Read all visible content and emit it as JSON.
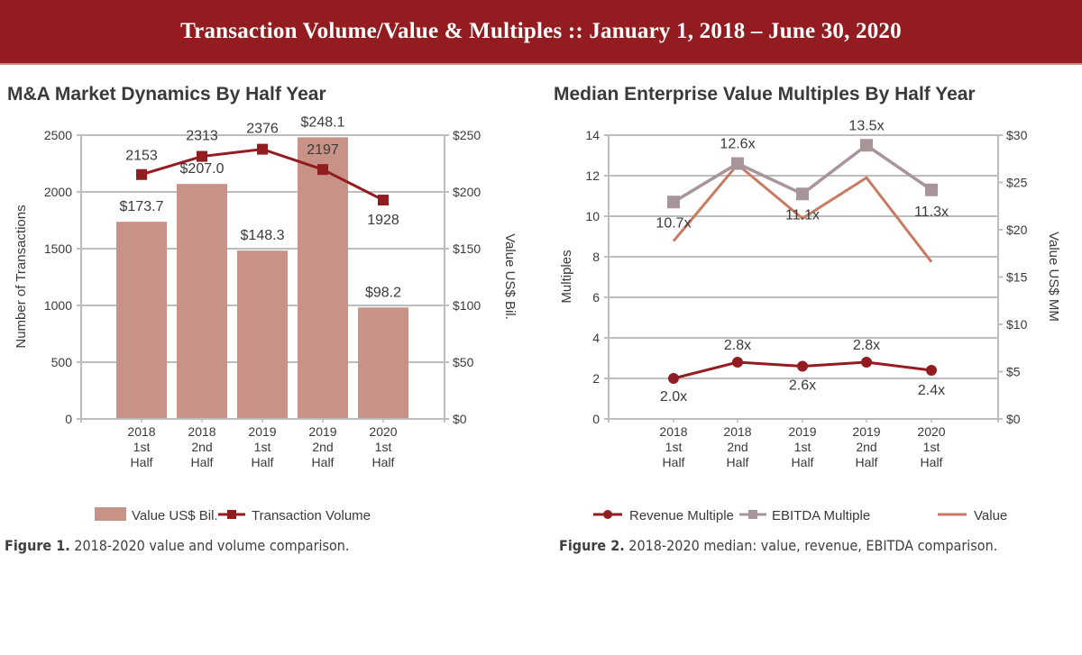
{
  "header": {
    "title": "Transaction Volume/Value & Multiples  ::  January 1, 2018 – June 30, 2020"
  },
  "colors": {
    "banner": "#931c20",
    "bar": "#c99287",
    "volume_line": "#931c20",
    "revenue_line": "#931c20",
    "ebitda_line": "#a7959a",
    "value_line": "#c67b62",
    "grid": "#bdbdbd"
  },
  "figures": [
    {
      "title": "M&A Market Dynamics By Half Year",
      "caption_bold": "Figure 1.",
      "caption_text": " 2018-2020 value and volume comparison."
    },
    {
      "title": "Median Enterprise Value Multiples By Half Year",
      "caption_bold": "Figure 2.",
      "caption_text": " 2018-2020 median: value, revenue, EBITDA comparison."
    }
  ],
  "chart_data": [
    {
      "type": "bar",
      "title": "M&A Market Dynamics By Half Year",
      "categories": [
        [
          "2018",
          "1st",
          "Half"
        ],
        [
          "2018",
          "2nd",
          "Half"
        ],
        [
          "2019",
          "1st",
          "Half"
        ],
        [
          "2019",
          "2nd",
          "Half"
        ],
        [
          "2020",
          "1st",
          "Half"
        ]
      ],
      "ylabel": "Number of Transactions",
      "y2label": "Value US$ Bil.",
      "ylim": [
        0,
        2500
      ],
      "y2lim": [
        0,
        250
      ],
      "yticks": [
        "0",
        "500",
        "1000",
        "1500",
        "2000",
        "2500"
      ],
      "y2ticks": [
        "$0",
        "$50",
        "$100",
        "$150",
        "$200",
        "$250"
      ],
      "grid": true,
      "legend_position": "bottom",
      "series": [
        {
          "name": "Value US$ Bil.",
          "kind": "bar",
          "axis": "right",
          "values": [
            173.7,
            207.0,
            148.3,
            248.1,
            98.2
          ],
          "labels": [
            "$173.7",
            "$207.0",
            "$148.3",
            "$248.1",
            "$98.2"
          ]
        },
        {
          "name": "Transaction Volume",
          "kind": "line",
          "marker": "square",
          "axis": "left",
          "values": [
            2153,
            2313,
            2376,
            2197,
            1928
          ],
          "labels": [
            "2153",
            "2313",
            "2376",
            "2197",
            "1928"
          ]
        }
      ]
    },
    {
      "type": "line",
      "title": "Median Enterprise Value Multiples By Half Year",
      "categories": [
        [
          "2018",
          "1st",
          "Half"
        ],
        [
          "2018",
          "2nd",
          "Half"
        ],
        [
          "2019",
          "1st",
          "Half"
        ],
        [
          "2019",
          "2nd",
          "Half"
        ],
        [
          "2020",
          "1st",
          "Half"
        ]
      ],
      "ylabel": "Multiples",
      "y2label": "Value US$ MM",
      "ylim": [
        0,
        14
      ],
      "y2lim": [
        0,
        30
      ],
      "yticks": [
        "0",
        "2",
        "4",
        "6",
        "8",
        "10",
        "12",
        "14"
      ],
      "y2ticks": [
        "$0",
        "$5",
        "$10",
        "$15",
        "$20",
        "$25",
        "$30"
      ],
      "grid": true,
      "legend_position": "bottom",
      "series": [
        {
          "name": "Revenue Multiple",
          "kind": "line",
          "marker": "circle",
          "axis": "left",
          "values": [
            2.0,
            2.8,
            2.6,
            2.8,
            2.4
          ],
          "labels": [
            "2.0x",
            "2.8x",
            "2.6x",
            "2.8x",
            "2.4x"
          ]
        },
        {
          "name": "EBITDA Multiple",
          "kind": "line",
          "marker": "square",
          "axis": "left",
          "values": [
            10.7,
            12.6,
            11.1,
            13.5,
            11.3
          ],
          "labels": [
            "10.7x",
            "12.6x",
            "11.1x",
            "13.5x",
            "11.3x"
          ]
        },
        {
          "name": "Value",
          "kind": "line",
          "marker": "none",
          "axis": "right",
          "values": [
            18.8,
            26.9,
            21.2,
            25.5,
            16.6
          ],
          "labels": []
        }
      ]
    }
  ]
}
